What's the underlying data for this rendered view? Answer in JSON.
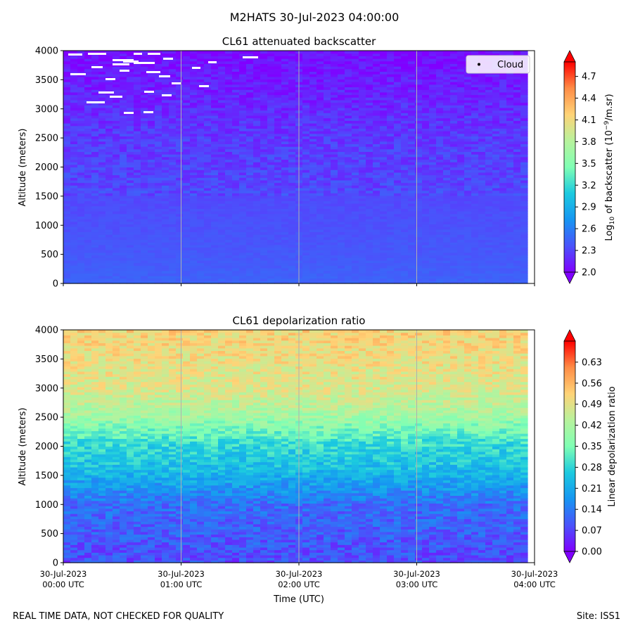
{
  "suptitle": "M2HATS 30-Jul-2023 04:00:00",
  "footer_left": "REAL TIME DATA, NOT CHECKED FOR QUALITY",
  "footer_right": "Site: ISS1",
  "chart_data": [
    {
      "type": "heatmap",
      "title": "CL61 attenuated backscatter",
      "xlabel": "",
      "ylabel": "Altitude (meters)",
      "xlim_hours": [
        0,
        4
      ],
      "ylim": [
        0,
        4000
      ],
      "yticks": [
        "0",
        "500",
        "1000",
        "1500",
        "2000",
        "2500",
        "3000",
        "3500",
        "4000"
      ],
      "colorbar_label": "Log10 of backscatter (10^-9/m.sr)",
      "colorbar_range": [
        2.0,
        4.9
      ],
      "colorbar_ticks": [
        "2.0",
        "2.3",
        "2.6",
        "2.9",
        "3.2",
        "3.5",
        "3.8",
        "4.1",
        "4.4",
        "4.7"
      ],
      "colormap": "rainbow",
      "legend": [
        {
          "label": "Cloud",
          "marker": "black dot",
          "position": "top-right"
        }
      ],
      "profile": [
        {
          "altitude": 0,
          "value": 2.45
        },
        {
          "altitude": 400,
          "value": 2.4
        },
        {
          "altitude": 1500,
          "value": 2.32
        },
        {
          "altitude": 2500,
          "value": 2.25
        },
        {
          "altitude": 3500,
          "value": 2.12
        },
        {
          "altitude": 4000,
          "value": 2.05
        }
      ]
    },
    {
      "type": "heatmap",
      "title": "CL61 depolarization ratio",
      "xlabel": "Time (UTC)",
      "ylabel": "Altitude (meters)",
      "xlim_hours": [
        0,
        4
      ],
      "ylim": [
        0,
        4000
      ],
      "yticks": [
        "0",
        "500",
        "1000",
        "1500",
        "2000",
        "2500",
        "3000",
        "3500",
        "4000"
      ],
      "xticks": [
        {
          "hour": 0,
          "line1": "30-Jul-2023",
          "line2": "00:00 UTC"
        },
        {
          "hour": 1,
          "line1": "30-Jul-2023",
          "line2": "01:00 UTC"
        },
        {
          "hour": 2,
          "line1": "30-Jul-2023",
          "line2": "02:00 UTC"
        },
        {
          "hour": 3,
          "line1": "30-Jul-2023",
          "line2": "03:00 UTC"
        },
        {
          "hour": 4,
          "line1": "30-Jul-2023",
          "line2": "04:00 UTC"
        }
      ],
      "colorbar_label": "Linear depolarization ratio",
      "colorbar_range": [
        0.0,
        0.7
      ],
      "colorbar_ticks": [
        "0.00",
        "0.07",
        "0.14",
        "0.21",
        "0.28",
        "0.35",
        "0.42",
        "0.49",
        "0.56",
        "0.63"
      ],
      "colormap": "rainbow",
      "profile": [
        {
          "altitude": 0,
          "value": 0.08
        },
        {
          "altitude": 1000,
          "value": 0.12
        },
        {
          "altitude": 1600,
          "value": 0.24
        },
        {
          "altitude": 2000,
          "value": 0.28
        },
        {
          "altitude": 2600,
          "value": 0.42
        },
        {
          "altitude": 3000,
          "value": 0.48
        },
        {
          "altitude": 4000,
          "value": 0.52
        }
      ]
    }
  ]
}
